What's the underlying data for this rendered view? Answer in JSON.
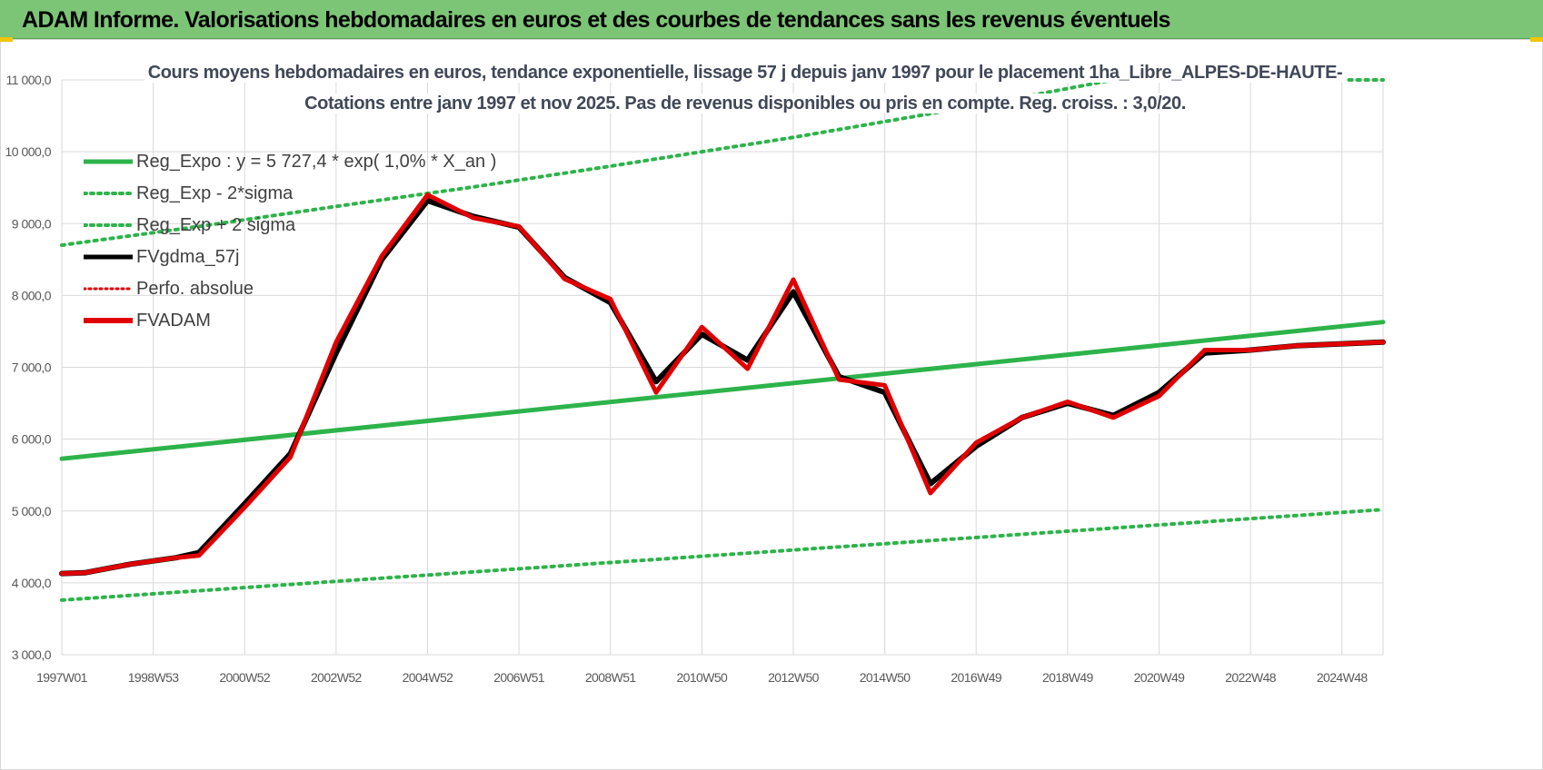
{
  "header": {
    "title": "ADAM Informe. Valorisations hebdomadaires en euros et des courbes de tendances sans les revenus éventuels"
  },
  "chart_data": {
    "type": "line",
    "title": "Cours moyens hebdomadaires en euros, tendance exponentielle, lissage 57 j depuis janv 1997 pour le placement 1ha_Libre_ALPES-DE-HAUTE-",
    "subtitle": "Cotations entre janv 1997 et nov 2025. Pas de revenus disponibles ou pris en compte. Reg. croiss. : 3,0/20.",
    "xlabel": "",
    "ylabel": "",
    "x_ticks": [
      "1997W01",
      "1998W53",
      "2000W52",
      "2002W52",
      "2004W52",
      "2006W51",
      "2008W51",
      "2010W50",
      "2012W50",
      "2014W50",
      "2016W49",
      "2018W49",
      "2020W49",
      "2022W48",
      "2024W48"
    ],
    "x_range_years": [
      1997.0,
      2025.9
    ],
    "ylim": [
      3000,
      11000
    ],
    "y_ticks": [
      "3 000,0",
      "4 000,0",
      "5 000,0",
      "6 000,0",
      "7 000,0",
      "8 000,0",
      "9 000,0",
      "10 000,0",
      "11 000,0"
    ],
    "grid": true,
    "legend_position": "top-left",
    "series": [
      {
        "name": "Reg_Expo : y = 5 727,4 * exp( 1,0% *  X_an )",
        "color": "#2db34a",
        "style": "solid",
        "x": [
          1997.0,
          2025.9
        ],
        "y": [
          5727,
          7630
        ]
      },
      {
        "name": "Reg_Exp - 2*sigma",
        "color": "#2db34a",
        "style": "dotted",
        "x": [
          1997.0,
          2025.9
        ],
        "y": [
          3760,
          5020
        ]
      },
      {
        "name": "Reg_Exp + 2 sigma",
        "color": "#2db34a",
        "style": "dotted",
        "x": [
          1997.0,
          2000.0,
          2003.0,
          2006.0,
          2009.0,
          2011.0,
          2013.0,
          2015.0,
          2017.0,
          2020.0,
          2023.0,
          2025.9
        ],
        "y": [
          8700,
          8960,
          9240,
          9510,
          9800,
          10000,
          10200,
          10420,
          10640,
          11000,
          11000,
          11000
        ]
      },
      {
        "name": "FVgdma_57j",
        "color": "#000000",
        "style": "solid",
        "x": [
          1997.0,
          1997.5,
          1998.5,
          1999.5,
          2000.0,
          2001.0,
          2002.0,
          2003.0,
          2004.0,
          2005.0,
          2006.0,
          2007.0,
          2008.0,
          2009.0,
          2010.0,
          2011.0,
          2012.0,
          2013.0,
          2014.0,
          2015.0,
          2016.0,
          2017.0,
          2018.0,
          2019.0,
          2020.0,
          2021.0,
          2022.0,
          2023.0,
          2024.0,
          2025.9
        ],
        "y": [
          4130,
          4140,
          4260,
          4350,
          4420,
          5100,
          5800,
          7200,
          8500,
          9320,
          9100,
          8950,
          8250,
          7900,
          6800,
          7460,
          7100,
          8050,
          6870,
          6650,
          5380,
          5900,
          6300,
          6500,
          6330,
          6650,
          7200,
          7240,
          7300,
          7350
        ]
      },
      {
        "name": "Perfo. absolue",
        "color": "#e00000",
        "style": "dotted",
        "x": [],
        "y": []
      },
      {
        "name": "FVADAM",
        "color": "#e00000",
        "style": "solid",
        "x": [
          1997.0,
          1997.5,
          1998.5,
          1999.5,
          2000.0,
          2001.0,
          2002.0,
          2003.0,
          2004.0,
          2005.0,
          2006.0,
          2007.0,
          2008.0,
          2009.0,
          2010.0,
          2011.0,
          2012.0,
          2013.0,
          2014.0,
          2015.0,
          2016.0,
          2017.0,
          2018.0,
          2019.0,
          2020.0,
          2021.0,
          2022.0,
          2023.0,
          2024.0,
          2025.9
        ],
        "y": [
          4130,
          4140,
          4260,
          4350,
          4380,
          5050,
          5750,
          7350,
          8550,
          9400,
          9080,
          8960,
          8230,
          7950,
          6650,
          7560,
          6980,
          8220,
          6830,
          6750,
          5250,
          5950,
          6300,
          6520,
          6300,
          6600,
          7240,
          7240,
          7300,
          7350
        ]
      }
    ]
  },
  "legend": {
    "items": [
      {
        "label": "Reg_Expo : y = 5 727,4 * exp( 1,0% *  X_an )"
      },
      {
        "label": "Reg_Exp - 2*sigma"
      },
      {
        "label": "Reg_Exp + 2 sigma"
      },
      {
        "label": "FVgdma_57j"
      },
      {
        "label": "Perfo. absolue"
      },
      {
        "label": "FVADAM"
      }
    ]
  }
}
